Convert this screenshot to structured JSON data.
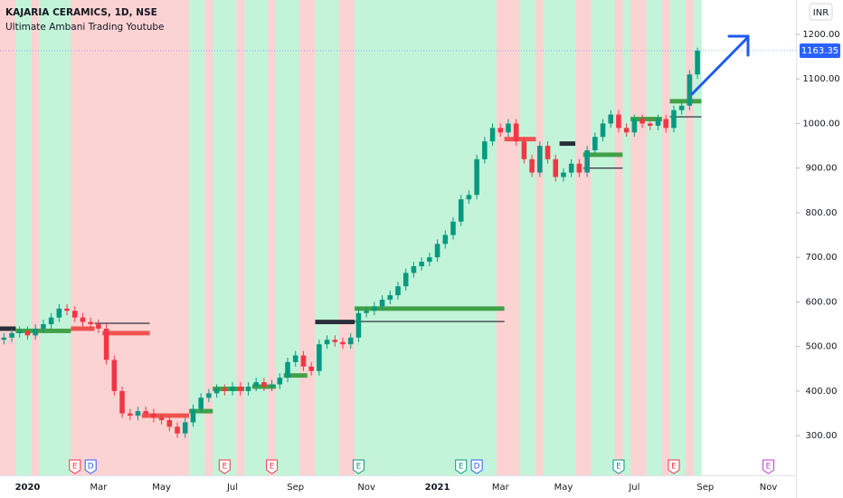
{
  "chart_data": {
    "type": "candlestick",
    "title": "KAJARIA CERAMICS, 1D, NSE",
    "subtitle": "Ultimate Ambani Trading Youtube",
    "currency": "INR",
    "up_color": "#089981",
    "down_color": "#f23645",
    "categories": [
      null,
      null,
      null,
      "2020",
      null,
      null,
      null,
      null,
      null,
      null,
      null,
      null,
      "Mar",
      null,
      null,
      null,
      null,
      null,
      null,
      null,
      "May",
      null,
      null,
      null,
      null,
      null,
      null,
      null,
      null,
      "Jul",
      null,
      null,
      null,
      null,
      null,
      null,
      null,
      "Sep",
      null,
      null,
      null,
      null,
      null,
      null,
      null,
      null,
      "Nov",
      null,
      null,
      null,
      null,
      null,
      null,
      null,
      null,
      "2021",
      null,
      null,
      null,
      null,
      null,
      null,
      null,
      "Mar",
      null,
      null,
      null,
      null,
      null,
      null,
      null,
      "May",
      null,
      null,
      null,
      null,
      null,
      null,
      null,
      null,
      "Jul",
      null,
      null,
      null,
      null,
      null,
      null,
      null,
      null,
      "Sep",
      null,
      null,
      null,
      null,
      null,
      null,
      null,
      "Nov",
      null,
      null,
      null
    ],
    "open": [
      515,
      520,
      530,
      535,
      525,
      540,
      550,
      565,
      585,
      580,
      565,
      555,
      550,
      540,
      470,
      400,
      350,
      345,
      355,
      350,
      340,
      335,
      320,
      305,
      330,
      360,
      385,
      395,
      405,
      400,
      410,
      400,
      410,
      420,
      410,
      415,
      430,
      465,
      480,
      455,
      445,
      505,
      515,
      510,
      505,
      520,
      575,
      580,
      590,
      605,
      615,
      635,
      665,
      680,
      690,
      700,
      730,
      750,
      780,
      830,
      840,
      920,
      960,
      990,
      980,
      1000,
      960,
      920,
      890,
      950,
      920,
      880,
      890,
      910,
      890,
      940,
      970,
      1000,
      1020,
      990,
      980,
      1010,
      1000,
      995,
      1010,
      990,
      1030,
      1040,
      1110,
      null,
      null,
      null,
      null,
      null,
      null,
      null,
      null,
      null,
      null,
      null,
      null
    ],
    "high": [
      530,
      540,
      545,
      545,
      550,
      560,
      575,
      595,
      595,
      590,
      575,
      565,
      560,
      550,
      480,
      410,
      360,
      365,
      365,
      360,
      350,
      345,
      330,
      340,
      370,
      395,
      405,
      415,
      415,
      420,
      420,
      420,
      430,
      430,
      425,
      440,
      475,
      490,
      490,
      465,
      515,
      525,
      525,
      520,
      530,
      585,
      590,
      600,
      615,
      625,
      645,
      675,
      690,
      700,
      710,
      740,
      760,
      790,
      840,
      850,
      930,
      970,
      1000,
      1000,
      1010,
      1010,
      970,
      930,
      960,
      960,
      930,
      900,
      920,
      920,
      950,
      980,
      1010,
      1030,
      1030,
      1000,
      1020,
      1020,
      1010,
      1020,
      1020,
      1040,
      1050,
      1120,
      1170,
      null,
      null,
      null,
      null,
      null,
      null,
      null,
      null,
      null,
      null,
      null,
      null
    ],
    "low": [
      505,
      510,
      520,
      515,
      515,
      530,
      540,
      555,
      570,
      555,
      545,
      540,
      530,
      460,
      390,
      340,
      335,
      335,
      340,
      330,
      325,
      310,
      295,
      295,
      320,
      350,
      375,
      385,
      390,
      390,
      390,
      390,
      400,
      400,
      400,
      405,
      420,
      455,
      445,
      435,
      435,
      495,
      500,
      495,
      495,
      510,
      565,
      570,
      580,
      595,
      605,
      625,
      655,
      670,
      680,
      690,
      720,
      740,
      770,
      820,
      830,
      910,
      950,
      970,
      970,
      950,
      910,
      880,
      880,
      910,
      870,
      870,
      880,
      880,
      880,
      930,
      960,
      990,
      980,
      970,
      970,
      990,
      985,
      985,
      980,
      980,
      1020,
      1030,
      1100,
      null,
      null,
      null,
      null,
      null,
      null,
      null,
      null,
      null,
      null,
      null,
      null
    ],
    "close": [
      520,
      530,
      535,
      525,
      540,
      550,
      565,
      585,
      580,
      565,
      555,
      550,
      540,
      470,
      400,
      350,
      345,
      355,
      350,
      340,
      335,
      320,
      305,
      330,
      360,
      385,
      395,
      405,
      400,
      410,
      400,
      410,
      420,
      410,
      415,
      430,
      465,
      480,
      455,
      445,
      505,
      515,
      510,
      505,
      520,
      575,
      580,
      590,
      605,
      615,
      635,
      665,
      680,
      690,
      700,
      730,
      750,
      780,
      830,
      840,
      920,
      960,
      990,
      980,
      1000,
      960,
      920,
      890,
      950,
      920,
      880,
      890,
      910,
      890,
      940,
      970,
      1000,
      1020,
      990,
      980,
      1010,
      1000,
      995,
      1010,
      990,
      1030,
      1040,
      1110,
      1163.35,
      null,
      null,
      null,
      null,
      null,
      null,
      null,
      null,
      null,
      null,
      null,
      null
    ],
    "zones": [
      "#fcd3d3",
      "#fcd3d3",
      "#c3f4da",
      "#c3f4da",
      "#fcd3d3",
      "#c3f4da",
      "#c3f4da",
      "#c3f4da",
      "#c3f4da",
      "#fcd3d3",
      "#fcd3d3",
      "#fcd3d3",
      "#fcd3d3",
      "#fcd3d3",
      "#fcd3d3",
      "#fcd3d3",
      "#fcd3d3",
      "#fcd3d3",
      "#fcd3d3",
      "#fcd3d3",
      "#fcd3d3",
      "#fcd3d3",
      "#fcd3d3",
      "#fcd3d3",
      "#c3f4da",
      "#c3f4da",
      "#fcd3d3",
      "#c3f4da",
      "#c3f4da",
      "#c3f4da",
      "#fcd3d3",
      "#c3f4da",
      "#c3f4da",
      "#c3f4da",
      "#fcd3d3",
      "#c3f4da",
      "#c3f4da",
      "#c3f4da",
      "#fcd3d3",
      "#fcd3d3",
      "#c3f4da",
      "#c3f4da",
      "#c3f4da",
      "#fcd3d3",
      "#fcd3d3",
      "#c3f4da",
      "#c3f4da",
      "#c3f4da",
      "#c3f4da",
      "#c3f4da",
      "#c3f4da",
      "#c3f4da",
      "#c3f4da",
      "#c3f4da",
      "#c3f4da",
      "#c3f4da",
      "#c3f4da",
      "#c3f4da",
      "#c3f4da",
      "#c3f4da",
      "#c3f4da",
      "#c3f4da",
      "#c3f4da",
      "#fcd3d3",
      "#fcd3d3",
      "#fcd3d3",
      "#c3f4da",
      "#c3f4da",
      "#fcd3d3",
      "#c3f4da",
      "#c3f4da",
      "#c3f4da",
      "#c3f4da",
      "#fcd3d3",
      "#fcd3d3",
      "#c3f4da",
      "#c3f4da",
      "#c3f4da",
      "#fcd3d3",
      "#c3f4da",
      "#fcd3d3",
      "#fcd3d3",
      "#c3f4da",
      "#c3f4da",
      "#fcd3d3",
      "#c3f4da",
      "#c3f4da",
      "#fcd3d3",
      "#c3f4da",
      null,
      null,
      null,
      null,
      null,
      null,
      null,
      null,
      null,
      null,
      null,
      null
    ],
    "levels": [
      {
        "start": 0,
        "end": 1,
        "low": 535,
        "high": 545,
        "color": "#2a2e39"
      },
      {
        "start": 2,
        "end": 8,
        "low": 530,
        "high": 540,
        "color": "#43a047"
      },
      {
        "start": 9,
        "end": 11,
        "low": 535,
        "high": 545,
        "color": "#ef5350"
      },
      {
        "start": 12,
        "end": 18,
        "low": 552,
        "high": 552,
        "color": "#2a2e39"
      },
      {
        "start": 13,
        "end": 18,
        "low": 525,
        "high": 535,
        "color": "#ef5350"
      },
      {
        "start": 18,
        "end": 23,
        "low": 340,
        "high": 350,
        "color": "#ef5350"
      },
      {
        "start": 24,
        "end": 26,
        "low": 350,
        "high": 360,
        "color": "#43a047"
      },
      {
        "start": 27,
        "end": 30,
        "low": 400,
        "high": 410,
        "color": "#43a047"
      },
      {
        "start": 32,
        "end": 34,
        "low": 405,
        "high": 415,
        "color": "#43a047"
      },
      {
        "start": 36,
        "end": 38,
        "low": 430,
        "high": 440,
        "color": "#43a047"
      },
      {
        "start": 40,
        "end": 44,
        "low": 550,
        "high": 560,
        "color": "#2a2e39"
      },
      {
        "start": 45,
        "end": 63,
        "low": 580,
        "high": 590,
        "color": "#43a047"
      },
      {
        "start": 45,
        "end": 63,
        "low": 556,
        "high": 556,
        "color": "#2a2e39"
      },
      {
        "start": 64,
        "end": 67,
        "low": 960,
        "high": 970,
        "color": "#ef5350"
      },
      {
        "start": 71,
        "end": 72,
        "low": 950,
        "high": 960,
        "color": "#2a2e39"
      },
      {
        "start": 74,
        "end": 78,
        "low": 925,
        "high": 935,
        "color": "#43a047"
      },
      {
        "start": 74,
        "end": 78,
        "low": 900,
        "high": 900,
        "color": "#2a2e39"
      },
      {
        "start": 80,
        "end": 83,
        "low": 1005,
        "high": 1015,
        "color": "#43a047"
      },
      {
        "start": 85,
        "end": 88,
        "low": 1045,
        "high": 1055,
        "color": "#43a047"
      },
      {
        "start": 85,
        "end": 88,
        "low": 1015,
        "high": 1015,
        "color": "#2a2e39"
      }
    ],
    "events": [
      {
        "label": "E",
        "index": 9,
        "color": "#f23645"
      },
      {
        "label": "D",
        "index": 11,
        "color": "#2962ff"
      },
      {
        "label": "E",
        "index": 28,
        "color": "#f23645"
      },
      {
        "label": "E",
        "index": 34,
        "color": "#f23645"
      },
      {
        "label": "E",
        "index": 45,
        "color": "#089981"
      },
      {
        "label": "E",
        "index": 58,
        "color": "#089981"
      },
      {
        "label": "D",
        "index": 60,
        "color": "#2962ff"
      },
      {
        "label": "E",
        "index": 78,
        "color": "#089981"
      },
      {
        "label": "E",
        "index": 85,
        "color": "#f23645"
      },
      {
        "label": "E",
        "index": 97,
        "color": "#c43bd4"
      }
    ],
    "ylim": [
      211,
      1277
    ],
    "yticks": [
      {
        "value": 300,
        "label": "300.00"
      },
      {
        "value": 400,
        "label": "400.00"
      },
      {
        "value": 500,
        "label": "500.00"
      },
      {
        "value": 600,
        "label": "600.00"
      },
      {
        "value": 700,
        "label": "700.00"
      },
      {
        "value": 800,
        "label": "800.00"
      },
      {
        "value": 900,
        "label": "900.00"
      },
      {
        "value": 1000,
        "label": "1000.00"
      },
      {
        "value": 1100,
        "label": "1100.00"
      },
      {
        "value": 1200,
        "label": "1200.00"
      }
    ]
  }
}
